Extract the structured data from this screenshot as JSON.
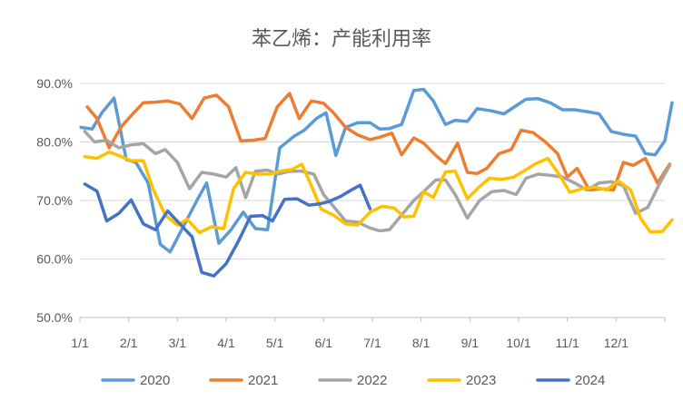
{
  "chart_data": {
    "type": "line",
    "title": "苯乙烯：产能利用率",
    "xlabel": "",
    "ylabel": "",
    "x_domain": [
      0,
      12
    ],
    "ylim": [
      50,
      90
    ],
    "y_ticks": [
      {
        "value": 90,
        "label": "90.0%"
      },
      {
        "value": 80,
        "label": "80.0%"
      },
      {
        "value": 70,
        "label": "70.0%"
      },
      {
        "value": 60,
        "label": "60.0%"
      },
      {
        "value": 50,
        "label": "50.0%"
      }
    ],
    "x_ticks": [
      {
        "value": 0,
        "label": "1/1"
      },
      {
        "value": 1,
        "label": "2/1"
      },
      {
        "value": 2,
        "label": "3/1"
      },
      {
        "value": 3,
        "label": "4/1"
      },
      {
        "value": 4,
        "label": "5/1"
      },
      {
        "value": 5,
        "label": "6/1"
      },
      {
        "value": 6,
        "label": "7/1"
      },
      {
        "value": 7,
        "label": "8/1"
      },
      {
        "value": 8,
        "label": "9/1"
      },
      {
        "value": 9,
        "label": "10/1"
      },
      {
        "value": 10,
        "label": "11/1"
      },
      {
        "value": 11,
        "label": "12/1"
      }
    ],
    "grid": "horizontal",
    "legend": "bottom",
    "series": [
      {
        "name": "2020",
        "color": "#5B9BD5",
        "points": [
          [
            0.02,
            82.5
          ],
          [
            0.25,
            82.2
          ],
          [
            0.45,
            85
          ],
          [
            0.7,
            87.5
          ],
          [
            0.95,
            77
          ],
          [
            1.15,
            76.5
          ],
          [
            1.4,
            73
          ],
          [
            1.65,
            62.5
          ],
          [
            1.85,
            61.2
          ],
          [
            2.15,
            66
          ],
          [
            2.4,
            70
          ],
          [
            2.6,
            73
          ],
          [
            2.85,
            62.7
          ],
          [
            3.1,
            65
          ],
          [
            3.35,
            68
          ],
          [
            3.6,
            65.2
          ],
          [
            3.85,
            65
          ],
          [
            4.1,
            79
          ],
          [
            4.4,
            81
          ],
          [
            4.6,
            82
          ],
          [
            4.85,
            84
          ],
          [
            5.05,
            85
          ],
          [
            5.25,
            77.7
          ],
          [
            5.45,
            82.5
          ],
          [
            5.7,
            83.3
          ],
          [
            5.95,
            83.3
          ],
          [
            6.15,
            82.2
          ],
          [
            6.35,
            82.3
          ],
          [
            6.6,
            83
          ],
          [
            6.85,
            88.8
          ],
          [
            7.05,
            89
          ],
          [
            7.25,
            87
          ],
          [
            7.5,
            83
          ],
          [
            7.7,
            83.7
          ],
          [
            7.95,
            83.5
          ],
          [
            8.15,
            85.7
          ],
          [
            8.45,
            85.3
          ],
          [
            8.7,
            84.8
          ],
          [
            8.95,
            86.2
          ],
          [
            9.15,
            87.3
          ],
          [
            9.4,
            87.4
          ],
          [
            9.65,
            86.7
          ],
          [
            9.9,
            85.5
          ],
          [
            10.15,
            85.5
          ],
          [
            10.4,
            85.2
          ],
          [
            10.65,
            84.8
          ],
          [
            10.9,
            81.8
          ],
          [
            11.15,
            81.3
          ],
          [
            11.4,
            81
          ],
          [
            11.6,
            78
          ],
          [
            11.8,
            77.8
          ],
          [
            12.0,
            80.2
          ],
          [
            12.15,
            86.7
          ]
        ]
      },
      {
        "name": "2021",
        "color": "#ED7D31",
        "points": [
          [
            0.15,
            86
          ],
          [
            0.35,
            84
          ],
          [
            0.6,
            79
          ],
          [
            0.85,
            82.6
          ],
          [
            1.05,
            84.5
          ],
          [
            1.3,
            86.7
          ],
          [
            1.55,
            86.8
          ],
          [
            1.8,
            87
          ],
          [
            2.05,
            86.5
          ],
          [
            2.3,
            84
          ],
          [
            2.55,
            87.5
          ],
          [
            2.8,
            88
          ],
          [
            3.05,
            86
          ],
          [
            3.3,
            80.2
          ],
          [
            3.55,
            80.3
          ],
          [
            3.8,
            80.6
          ],
          [
            4.05,
            86
          ],
          [
            4.3,
            88.3
          ],
          [
            4.5,
            84
          ],
          [
            4.75,
            87
          ],
          [
            5.0,
            86.6
          ],
          [
            5.2,
            85
          ],
          [
            5.45,
            82.5
          ],
          [
            5.7,
            81.2
          ],
          [
            5.95,
            80.4
          ],
          [
            6.15,
            80.8
          ],
          [
            6.4,
            81.5
          ],
          [
            6.6,
            77.8
          ],
          [
            6.85,
            80.7
          ],
          [
            7.05,
            79.8
          ],
          [
            7.3,
            77.7
          ],
          [
            7.5,
            76.3
          ],
          [
            7.75,
            79.8
          ],
          [
            7.95,
            74.8
          ],
          [
            8.15,
            74.6
          ],
          [
            8.35,
            75.5
          ],
          [
            8.6,
            78
          ],
          [
            8.85,
            78.7
          ],
          [
            9.05,
            82
          ],
          [
            9.3,
            81.6
          ],
          [
            9.55,
            80
          ],
          [
            9.8,
            78
          ],
          [
            10.0,
            74
          ],
          [
            10.2,
            75.5
          ],
          [
            10.45,
            71.8
          ],
          [
            10.7,
            72
          ],
          [
            10.95,
            71.8
          ],
          [
            11.15,
            76.5
          ],
          [
            11.35,
            76
          ],
          [
            11.6,
            77.2
          ],
          [
            11.85,
            73
          ],
          [
            12.1,
            76.2
          ]
        ]
      },
      {
        "name": "2022",
        "color": "#A5A5A5",
        "points": [
          [
            0.1,
            81.8
          ],
          [
            0.3,
            80
          ],
          [
            0.55,
            80.3
          ],
          [
            0.8,
            79
          ],
          [
            1.05,
            79.5
          ],
          [
            1.3,
            79.7
          ],
          [
            1.55,
            78
          ],
          [
            1.75,
            78.7
          ],
          [
            2.0,
            76.5
          ],
          [
            2.25,
            72
          ],
          [
            2.5,
            74.8
          ],
          [
            2.75,
            74.5
          ],
          [
            3.0,
            74
          ],
          [
            3.2,
            75.6
          ],
          [
            3.4,
            70.5
          ],
          [
            3.6,
            75
          ],
          [
            3.85,
            75.2
          ],
          [
            4.05,
            74.5
          ],
          [
            4.3,
            75
          ],
          [
            4.55,
            75
          ],
          [
            4.8,
            74.5
          ],
          [
            5.0,
            71
          ],
          [
            5.25,
            68.5
          ],
          [
            5.45,
            66.5
          ],
          [
            5.7,
            66.3
          ],
          [
            5.95,
            65.3
          ],
          [
            6.15,
            64.8
          ],
          [
            6.35,
            65
          ],
          [
            6.6,
            67.5
          ],
          [
            6.85,
            70
          ],
          [
            7.05,
            71.5
          ],
          [
            7.3,
            73.5
          ],
          [
            7.5,
            73.5
          ],
          [
            7.7,
            71
          ],
          [
            7.95,
            67
          ],
          [
            8.2,
            70
          ],
          [
            8.45,
            71.5
          ],
          [
            8.7,
            71.7
          ],
          [
            8.95,
            71
          ],
          [
            9.15,
            73.8
          ],
          [
            9.4,
            74.5
          ],
          [
            9.65,
            74.3
          ],
          [
            9.9,
            74
          ],
          [
            10.15,
            73
          ],
          [
            10.4,
            71.8
          ],
          [
            10.65,
            73
          ],
          [
            10.9,
            73.2
          ],
          [
            11.15,
            72.5
          ],
          [
            11.4,
            67.8
          ],
          [
            11.65,
            68.8
          ],
          [
            11.9,
            73
          ],
          [
            12.1,
            76
          ]
        ]
      },
      {
        "name": "2023",
        "color": "#FFC000",
        "points": [
          [
            0.1,
            77.5
          ],
          [
            0.35,
            77.2
          ],
          [
            0.6,
            78.3
          ],
          [
            0.85,
            77.5
          ],
          [
            1.05,
            76.8
          ],
          [
            1.3,
            76.8
          ],
          [
            1.5,
            72
          ],
          [
            1.75,
            67.5
          ],
          [
            2.0,
            65.8
          ],
          [
            2.2,
            66.8
          ],
          [
            2.45,
            64.5
          ],
          [
            2.7,
            65.5
          ],
          [
            2.95,
            65.2
          ],
          [
            3.15,
            72
          ],
          [
            3.4,
            74.8
          ],
          [
            3.65,
            74.5
          ],
          [
            3.9,
            74.5
          ],
          [
            4.1,
            75
          ],
          [
            4.35,
            75.3
          ],
          [
            4.55,
            76.2
          ],
          [
            4.75,
            72.5
          ],
          [
            4.95,
            68.5
          ],
          [
            5.2,
            67.5
          ],
          [
            5.45,
            66
          ],
          [
            5.7,
            65.8
          ],
          [
            5.95,
            68
          ],
          [
            6.2,
            69
          ],
          [
            6.45,
            68.7
          ],
          [
            6.65,
            67.2
          ],
          [
            6.85,
            67.3
          ],
          [
            7.05,
            71.5
          ],
          [
            7.25,
            70.5
          ],
          [
            7.5,
            74.9
          ],
          [
            7.7,
            75
          ],
          [
            7.95,
            70.3
          ],
          [
            8.15,
            72
          ],
          [
            8.4,
            73.8
          ],
          [
            8.65,
            73.6
          ],
          [
            8.9,
            74
          ],
          [
            9.1,
            75
          ],
          [
            9.35,
            76.3
          ],
          [
            9.6,
            77.2
          ],
          [
            9.85,
            74.2
          ],
          [
            10.05,
            71.4
          ],
          [
            10.3,
            72
          ],
          [
            10.55,
            72.3
          ],
          [
            10.8,
            71.8
          ],
          [
            11.05,
            73.3
          ],
          [
            11.3,
            71.8
          ],
          [
            11.5,
            67
          ],
          [
            11.7,
            64.6
          ],
          [
            11.95,
            64.7
          ],
          [
            12.15,
            66.7
          ]
        ]
      },
      {
        "name": "2024",
        "color": "#4472C4",
        "points": [
          [
            0.1,
            72.8
          ],
          [
            0.35,
            71.6
          ],
          [
            0.55,
            66.5
          ],
          [
            0.8,
            67.8
          ],
          [
            1.05,
            70.1
          ],
          [
            1.3,
            66
          ],
          [
            1.55,
            65
          ],
          [
            1.8,
            68.2
          ],
          [
            2.05,
            66
          ],
          [
            2.3,
            63.8
          ],
          [
            2.5,
            57.7
          ],
          [
            2.75,
            57.1
          ],
          [
            3.0,
            59.2
          ],
          [
            3.25,
            63
          ],
          [
            3.5,
            67.3
          ],
          [
            3.75,
            67.4
          ],
          [
            3.95,
            66.5
          ],
          [
            4.2,
            70.2
          ],
          [
            4.45,
            70.3
          ],
          [
            4.7,
            69.2
          ],
          [
            4.9,
            69.4
          ],
          [
            5.1,
            69.8
          ],
          [
            5.35,
            70.7
          ],
          [
            5.55,
            71.7
          ],
          [
            5.75,
            72.6
          ],
          [
            5.95,
            68.6
          ]
        ]
      }
    ]
  }
}
